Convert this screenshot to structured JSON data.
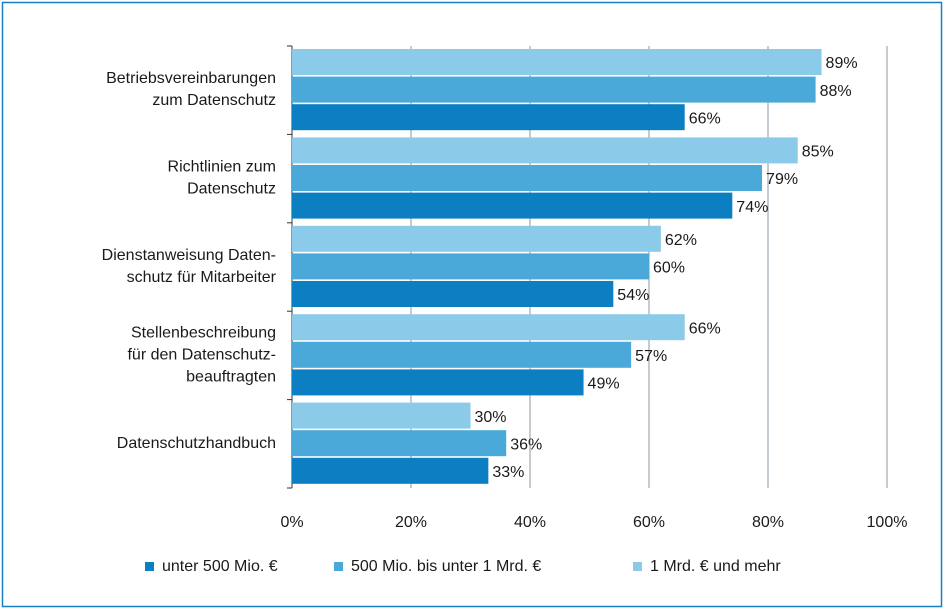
{
  "chart_data": {
    "type": "barh",
    "categories": [
      [
        "Betriebsvereinbarungen",
        "zum Datenschutz"
      ],
      [
        "Richtlinien zum",
        "Datenschutz"
      ],
      [
        "Dienstanweisung Daten-",
        "schutz für Mitarbeiter"
      ],
      [
        "Stellenbeschreibung",
        "für den Datenschutz-",
        "beauftragten"
      ],
      [
        "Datenschutzhandbuch"
      ]
    ],
    "series": [
      {
        "name": "unter 500 Mio. €",
        "color": "#0b7fc1",
        "values": [
          66,
          74,
          54,
          49,
          33
        ],
        "value_labels": [
          "66%",
          "74%",
          "54%",
          "49%",
          "33%"
        ]
      },
      {
        "name": "500 Mio. bis unter 1 Mrd. €",
        "color": "#4aa9d9",
        "values": [
          88,
          79,
          60,
          57,
          36
        ],
        "value_labels": [
          "88%",
          "79%",
          "60%",
          "57%",
          "36%"
        ]
      },
      {
        "name": "1 Mrd. € und mehr",
        "color": "#8ccaea",
        "values": [
          89,
          85,
          62,
          66,
          30
        ],
        "value_labels": [
          "89%",
          "85%",
          "62%",
          "66%",
          "30%"
        ]
      }
    ],
    "xlim": [
      0,
      100
    ],
    "xticks": [
      {
        "value": 0,
        "label": "0%"
      },
      {
        "value": 20,
        "label": "20%"
      },
      {
        "value": 40,
        "label": "40%"
      },
      {
        "value": 60,
        "label": "60%"
      },
      {
        "value": 80,
        "label": "80%"
      },
      {
        "value": 100,
        "label": "100%"
      }
    ],
    "grid": true,
    "legend": "bottom"
  }
}
